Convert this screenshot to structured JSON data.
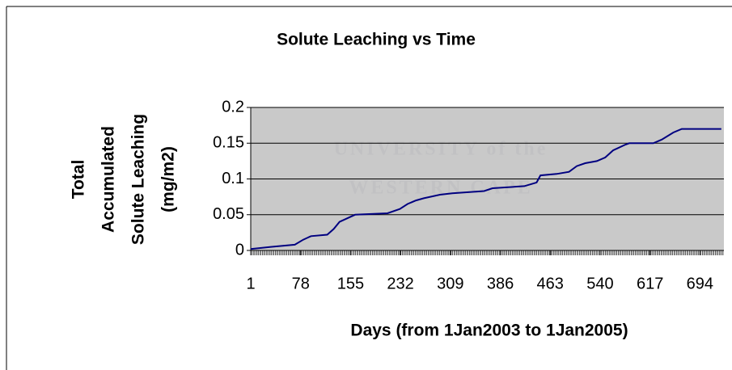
{
  "chart_data": {
    "type": "line",
    "title": "Solute Leaching vs Time",
    "x_label": "Days (from 1Jan2003 to 1Jan2005)",
    "y_label": [
      "Total",
      "Accumulated",
      "Solute Leaching",
      "(mg/m2)"
    ],
    "watermark": [
      "UNIVERSITY of the",
      "WESTERN CAPE"
    ],
    "x": [
      1,
      32,
      69,
      82,
      94,
      119,
      129,
      138,
      150,
      162,
      212,
      231,
      243,
      256,
      268,
      293,
      312,
      361,
      374,
      423,
      442,
      448,
      473,
      492,
      504,
      517,
      535,
      548,
      560,
      579,
      585,
      622,
      635,
      653,
      666,
      727
    ],
    "series": [
      {
        "name": "Solute Leaching",
        "color": "#000080",
        "values": [
          0.002,
          0.005,
          0.008,
          0.015,
          0.02,
          0.022,
          0.03,
          0.04,
          0.045,
          0.05,
          0.052,
          0.058,
          0.065,
          0.07,
          0.073,
          0.078,
          0.08,
          0.083,
          0.087,
          0.09,
          0.095,
          0.105,
          0.107,
          0.11,
          0.118,
          0.122,
          0.125,
          0.13,
          0.14,
          0.148,
          0.15,
          0.15,
          0.155,
          0.165,
          0.17,
          0.17
        ]
      }
    ],
    "xlim": [
      1,
      731
    ],
    "xticks": [
      1,
      78,
      155,
      232,
      309,
      386,
      463,
      540,
      617,
      694
    ],
    "ylim": [
      0,
      0.2
    ],
    "yticks": [
      0,
      0.05,
      0.1,
      0.15,
      0.2
    ],
    "grid": true,
    "plot_background": "#c0c0c0"
  }
}
